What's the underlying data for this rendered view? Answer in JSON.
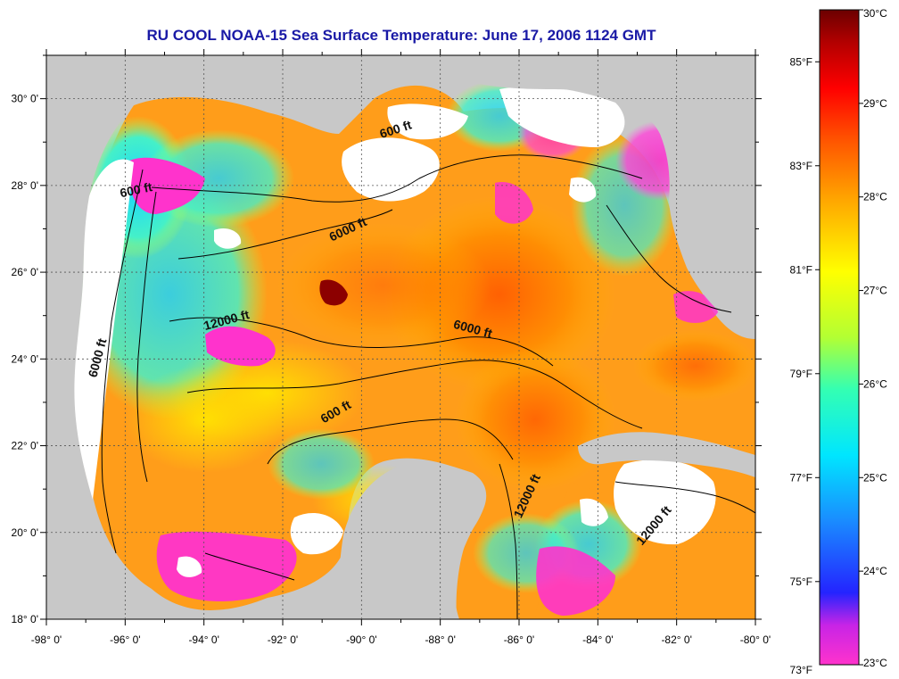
{
  "title": "RU COOL  NOAA-15  Sea Surface Temperature:  June 17, 2006 1124 GMT",
  "map": {
    "lon_range": [
      -98,
      -80
    ],
    "lat_range": [
      18,
      31
    ],
    "lon_ticks": [
      "-98° 0'",
      "-96° 0'",
      "-94° 0'",
      "-92° 0'",
      "-90° 0'",
      "-88° 0'",
      "-86° 0'",
      "-84° 0'",
      "-82° 0'",
      "-80° 0'"
    ],
    "lat_ticks": [
      "30° 0'",
      "28° 0'",
      "26° 0'",
      "24° 0'",
      "22° 0'",
      "20° 0'",
      "18° 0'"
    ],
    "land_color": "#c8c8c8",
    "cloud_color": "#ffffff",
    "contour_labels": [
      {
        "text": "600 ft",
        "lon": -95.7,
        "lat": 27.8
      },
      {
        "text": "600 ft",
        "lon": -89.1,
        "lat": 29.2
      },
      {
        "text": "6000 ft",
        "lon": -90.3,
        "lat": 26.9
      },
      {
        "text": "12000 ft",
        "lon": -93.4,
        "lat": 24.8
      },
      {
        "text": "6000 ft",
        "lon": -96.6,
        "lat": 24.0
      },
      {
        "text": "6000 ft",
        "lon": -87.2,
        "lat": 24.6
      },
      {
        "text": "600 ft",
        "lon": -90.6,
        "lat": 22.7
      },
      {
        "text": "12000 ft",
        "lon": -85.7,
        "lat": 20.8
      },
      {
        "text": "12000 ft",
        "lon": -82.5,
        "lat": 20.1
      }
    ]
  },
  "colorbar": {
    "celsius_labels": [
      "30°C",
      "29°C",
      "28°C",
      "27°C",
      "26°C",
      "25°C",
      "24°C",
      "23°C"
    ],
    "fahrenheit_labels": [
      "85°F",
      "83°F",
      "81°F",
      "79°F",
      "77°F",
      "75°F",
      "73°F"
    ],
    "celsius_range": [
      23,
      30
    ],
    "colors": [
      "#ff33cc",
      "#8822ff",
      "#2222ff",
      "#1a8cff",
      "#00e6ff",
      "#33ffb3",
      "#c8ff33",
      "#ffff00",
      "#ffb300",
      "#ff6600",
      "#ff0000",
      "#cc0000",
      "#7a0000"
    ]
  }
}
